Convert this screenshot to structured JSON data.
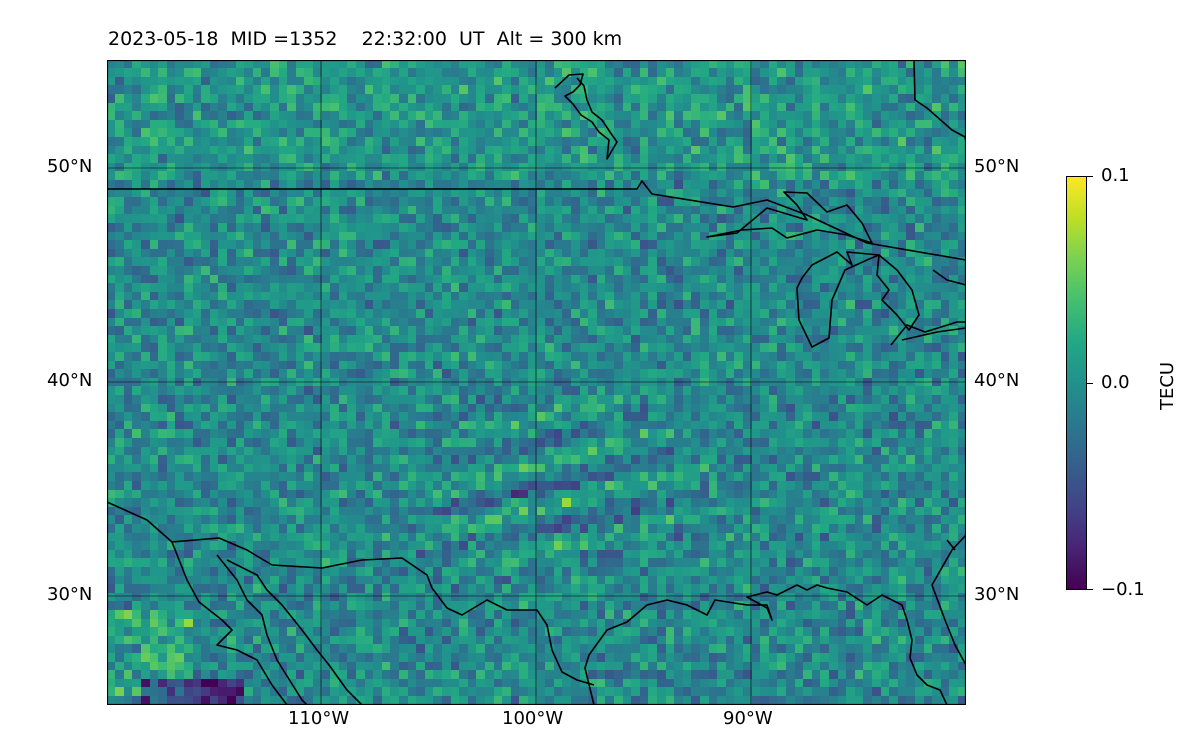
{
  "title": "2023-05-18  MID =1352    22:32:00  UT  Alt = 300 km",
  "map": {
    "lon_range": [
      -120,
      -80
    ],
    "lat_range": [
      25,
      55
    ],
    "lat_ticks": [
      {
        "value": 50,
        "label": "50°N"
      },
      {
        "value": 40,
        "label": "40°N"
      },
      {
        "value": 30,
        "label": "30°N"
      }
    ],
    "lon_ticks": [
      {
        "value": -110,
        "label": "110°W"
      },
      {
        "value": -100,
        "label": "100°W"
      },
      {
        "value": -90,
        "label": "90°W"
      }
    ],
    "gridlines": true,
    "colormap": "viridis",
    "coastline_color": "#000000"
  },
  "colorbar": {
    "label": "TECU",
    "min": -0.1,
    "max": 0.1,
    "ticks": [
      {
        "value": 0.1,
        "label": "0.1"
      },
      {
        "value": 0.0,
        "label": "0.0"
      },
      {
        "value": -0.1,
        "label": "−0.1"
      }
    ]
  }
}
